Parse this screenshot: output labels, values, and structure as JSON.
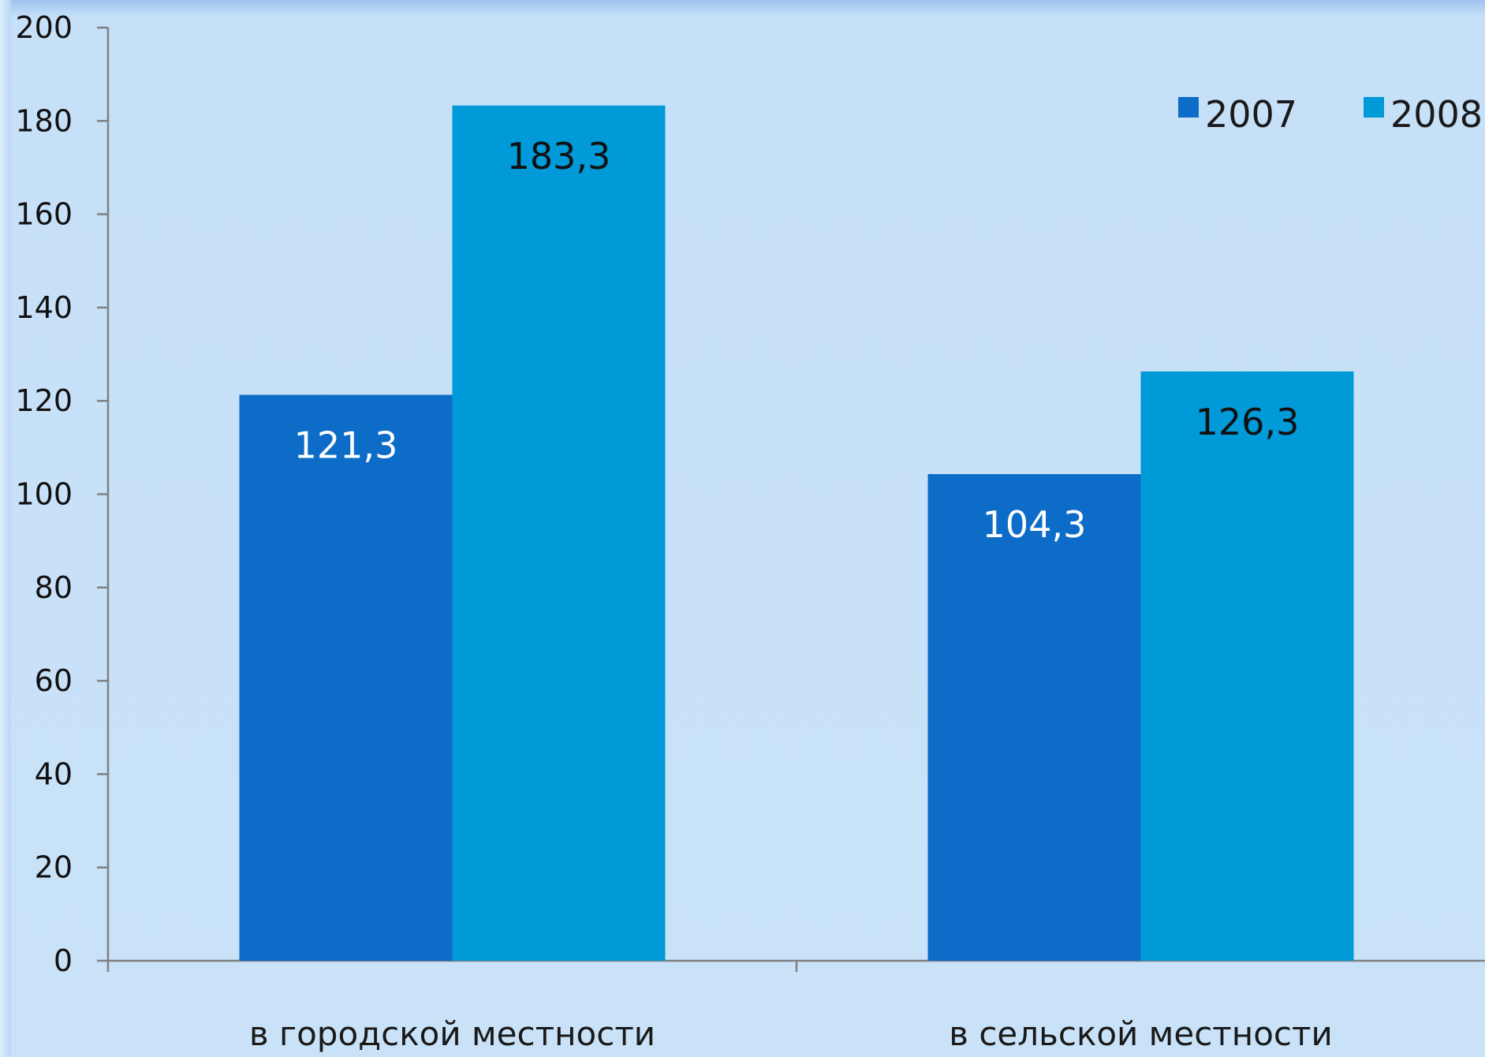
{
  "chart_data": {
    "type": "bar",
    "categories": [
      "в городской местности",
      "в сельской местности"
    ],
    "series": [
      {
        "name": "2007",
        "values": [
          121.3,
          104.3
        ],
        "labels": [
          "121,3",
          "104,3"
        ],
        "color": "#0d6cc7",
        "label_color": "#ffffff"
      },
      {
        "name": "2008",
        "values": [
          183.3,
          126.3
        ],
        "labels": [
          "183,3",
          "126,3"
        ],
        "color": "#009ad8",
        "label_color": "#111111"
      }
    ],
    "ylim": [
      0,
      200
    ],
    "yticks": [
      0,
      20,
      40,
      60,
      80,
      100,
      120,
      140,
      160,
      180,
      200
    ],
    "legend_position": "top-right",
    "grid": false
  }
}
